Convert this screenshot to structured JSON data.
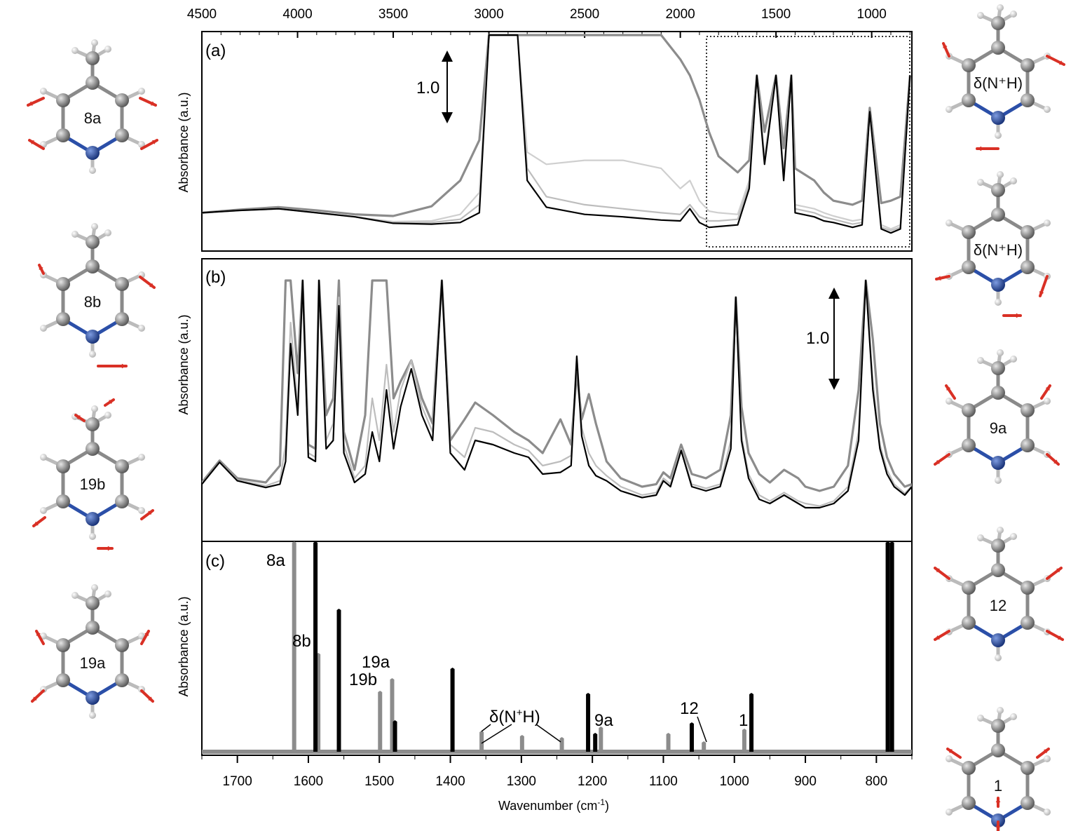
{
  "chart_data": [
    {
      "panel": "(a)",
      "type": "line",
      "ylabel": "Absorbance (a.u.)",
      "x_ticks": [
        4500,
        4000,
        3500,
        3000,
        2500,
        2000,
        1500,
        1000
      ],
      "xlim": [
        4500,
        790
      ],
      "scale_bar": "1.0",
      "series": [
        {
          "color": "#000000",
          "x": [
            4500,
            4300,
            4100,
            3900,
            3700,
            3500,
            3300,
            3150,
            3050,
            3000,
            2900,
            2850,
            2800,
            2700,
            2500,
            2300,
            2100,
            2000,
            1950,
            1900,
            1850,
            1800,
            1700,
            1640,
            1600,
            1560,
            1500,
            1460,
            1420,
            1400,
            1300,
            1250,
            1200,
            1100,
            1050,
            1010,
            950,
            900,
            850,
            800
          ],
          "y": [
            0.3,
            0.33,
            0.35,
            0.3,
            0.25,
            0.17,
            0.16,
            0.18,
            0.3,
            2.5,
            2.5,
            2.5,
            0.7,
            0.37,
            0.28,
            0.25,
            0.21,
            0.2,
            0.35,
            0.18,
            0.12,
            0.13,
            0.15,
            0.6,
            2.0,
            0.9,
            2.0,
            0.7,
            2.0,
            0.3,
            0.25,
            0.2,
            0.18,
            0.12,
            0.15,
            1.55,
            0.1,
            0.05,
            0.1,
            2.0
          ]
        },
        {
          "color": "#bdbdbd",
          "x": [
            4500,
            4300,
            4100,
            3900,
            3700,
            3500,
            3300,
            3150,
            3050,
            3000,
            2900,
            2850,
            2800,
            2700,
            2500,
            2300,
            2100,
            2000,
            1950,
            1900,
            1850,
            1800,
            1700,
            1640,
            1600,
            1560,
            1500,
            1460,
            1420,
            1400,
            1300,
            1250,
            1200,
            1100,
            1050,
            1010,
            950,
            900,
            850,
            800
          ],
          "y": [
            0.3,
            0.33,
            0.35,
            0.3,
            0.25,
            0.18,
            0.18,
            0.22,
            0.4,
            2.5,
            2.5,
            2.5,
            0.85,
            0.5,
            0.4,
            0.35,
            0.3,
            0.28,
            0.4,
            0.25,
            0.2,
            0.2,
            0.22,
            0.65,
            2.0,
            0.95,
            2.0,
            0.75,
            2.0,
            0.35,
            0.3,
            0.25,
            0.22,
            0.16,
            0.18,
            1.55,
            0.12,
            0.08,
            0.12,
            2.0
          ]
        },
        {
          "color": "#cfcfcf",
          "x": [
            4500,
            4300,
            4100,
            3900,
            3700,
            3500,
            3300,
            3150,
            3050,
            3000,
            2900,
            2850,
            2800,
            2700,
            2500,
            2300,
            2100,
            2000,
            1950,
            1900,
            1850,
            1800,
            1700,
            1640,
            1600,
            1560,
            1500,
            1460,
            1420,
            1400,
            1300,
            1250,
            1200,
            1100,
            1050,
            1010,
            950,
            900,
            850,
            800
          ],
          "y": [
            0.3,
            0.33,
            0.35,
            0.3,
            0.25,
            0.19,
            0.2,
            0.28,
            0.55,
            2.5,
            2.5,
            2.5,
            1.05,
            0.9,
            0.95,
            0.95,
            0.85,
            0.6,
            0.7,
            0.45,
            0.32,
            0.3,
            0.28,
            0.7,
            2.0,
            1.0,
            2.0,
            0.8,
            2.0,
            0.4,
            0.35,
            0.3,
            0.26,
            0.2,
            0.22,
            1.55,
            0.15,
            0.1,
            0.15,
            2.0
          ]
        },
        {
          "color": "#8c8c8c",
          "x": [
            4500,
            4300,
            4100,
            3900,
            3700,
            3500,
            3300,
            3150,
            3050,
            3000,
            2900,
            2850,
            2800,
            2700,
            2500,
            2300,
            2100,
            2000,
            1950,
            1900,
            1850,
            1800,
            1700,
            1640,
            1600,
            1560,
            1500,
            1460,
            1420,
            1400,
            1300,
            1250,
            1200,
            1100,
            1050,
            1010,
            950,
            900,
            850,
            800
          ],
          "y": [
            0.3,
            0.34,
            0.37,
            0.33,
            0.28,
            0.26,
            0.38,
            0.7,
            1.2,
            2.5,
            2.5,
            2.5,
            2.5,
            2.5,
            2.5,
            2.5,
            2.5,
            2.2,
            2.0,
            1.7,
            1.3,
            1.0,
            0.8,
            0.95,
            2.0,
            1.3,
            2.0,
            1.1,
            2.0,
            0.85,
            0.7,
            0.55,
            0.45,
            0.4,
            0.45,
            1.6,
            0.42,
            0.45,
            0.5,
            2.0
          ]
        }
      ]
    },
    {
      "panel": "(b)",
      "type": "line",
      "ylabel": "Absorbance (a.u.)",
      "xlim": [
        1750,
        750
      ],
      "scale_bar": "1.0",
      "series": [
        {
          "color": "#000000",
          "x": [
            1750,
            1725,
            1700,
            1660,
            1640,
            1632,
            1625,
            1615,
            1608,
            1600,
            1590,
            1585,
            1575,
            1565,
            1557,
            1550,
            1535,
            1520,
            1510,
            1500,
            1490,
            1480,
            1470,
            1455,
            1440,
            1425,
            1412,
            1400,
            1380,
            1365,
            1340,
            1310,
            1290,
            1270,
            1245,
            1230,
            1222,
            1215,
            1205,
            1195,
            1180,
            1160,
            1130,
            1110,
            1100,
            1090,
            1075,
            1060,
            1040,
            1020,
            1005,
            998,
            990,
            980,
            965,
            950,
            930,
            910,
            900,
            880,
            860,
            840,
            825,
            815,
            805,
            795,
            785,
            775,
            760,
            750
          ],
          "y": [
            0.08,
            0.34,
            0.12,
            0.04,
            0.08,
            0.35,
            1.75,
            0.9,
            2.5,
            0.4,
            0.35,
            2.5,
            0.5,
            0.6,
            2.2,
            0.45,
            0.1,
            0.2,
            0.7,
            0.35,
            1.2,
            0.5,
            1.0,
            1.45,
            0.9,
            0.6,
            2.5,
            0.45,
            0.25,
            0.6,
            0.55,
            0.45,
            0.4,
            0.2,
            0.22,
            0.3,
            1.6,
            0.65,
            0.3,
            0.18,
            0.12,
            0.0,
            -0.08,
            -0.05,
            0.12,
            0.05,
            0.48,
            0.05,
            0.0,
            0.05,
            0.5,
            2.3,
            0.6,
            0.15,
            -0.1,
            -0.15,
            -0.05,
            -0.15,
            -0.2,
            -0.2,
            -0.15,
            0.0,
            0.6,
            2.5,
            1.2,
            0.5,
            0.2,
            0.05,
            -0.05,
            0.05
          ]
        },
        {
          "color": "#bdbdbd",
          "x": [
            1750,
            1725,
            1700,
            1660,
            1640,
            1632,
            1625,
            1615,
            1608,
            1600,
            1590,
            1585,
            1575,
            1565,
            1557,
            1550,
            1535,
            1520,
            1510,
            1500,
            1490,
            1480,
            1470,
            1455,
            1440,
            1425,
            1412,
            1400,
            1380,
            1365,
            1340,
            1310,
            1290,
            1270,
            1245,
            1230,
            1222,
            1215,
            1205,
            1195,
            1180,
            1160,
            1130,
            1110,
            1100,
            1090,
            1075,
            1060,
            1040,
            1020,
            1005,
            998,
            990,
            980,
            965,
            950,
            930,
            910,
            900,
            880,
            860,
            840,
            825,
            815,
            805,
            795,
            785,
            775,
            760,
            750
          ],
          "y": [
            0.09,
            0.34,
            0.13,
            0.06,
            0.12,
            0.55,
            2.0,
            1.0,
            2.5,
            0.45,
            0.4,
            2.5,
            0.6,
            0.8,
            2.3,
            0.55,
            0.15,
            0.3,
            1.1,
            0.6,
            1.5,
            0.7,
            1.2,
            1.55,
            1.0,
            0.7,
            2.5,
            0.55,
            0.4,
            0.75,
            0.7,
            0.55,
            0.48,
            0.3,
            0.35,
            0.42,
            1.6,
            0.75,
            0.45,
            0.3,
            0.18,
            0.05,
            -0.05,
            -0.02,
            0.15,
            0.08,
            0.5,
            0.08,
            0.03,
            0.08,
            0.6,
            2.3,
            0.65,
            0.2,
            -0.05,
            -0.12,
            -0.02,
            -0.12,
            -0.15,
            -0.18,
            -0.12,
            0.05,
            0.7,
            2.5,
            1.3,
            0.55,
            0.25,
            0.08,
            -0.03,
            0.06
          ]
        },
        {
          "color": "#8c8c8c",
          "x": [
            1750,
            1725,
            1700,
            1660,
            1640,
            1632,
            1625,
            1615,
            1608,
            1600,
            1590,
            1585,
            1575,
            1565,
            1557,
            1550,
            1535,
            1520,
            1510,
            1500,
            1490,
            1480,
            1470,
            1455,
            1440,
            1425,
            1412,
            1400,
            1380,
            1365,
            1340,
            1310,
            1290,
            1270,
            1245,
            1230,
            1222,
            1215,
            1205,
            1195,
            1180,
            1160,
            1130,
            1110,
            1100,
            1090,
            1075,
            1060,
            1040,
            1020,
            1005,
            998,
            990,
            980,
            965,
            950,
            930,
            910,
            900,
            880,
            860,
            840,
            825,
            815,
            805,
            795,
            785,
            775,
            760,
            750
          ],
          "y": [
            0.1,
            0.36,
            0.15,
            0.1,
            0.3,
            2.5,
            2.5,
            1.4,
            2.5,
            0.55,
            0.5,
            2.5,
            0.9,
            1.1,
            2.5,
            0.7,
            0.25,
            0.9,
            2.5,
            2.5,
            2.5,
            1.1,
            1.3,
            1.55,
            1.1,
            0.8,
            2.5,
            0.6,
            0.85,
            1.05,
            0.9,
            0.7,
            0.6,
            0.45,
            0.85,
            0.55,
            1.4,
            0.85,
            1.15,
            0.8,
            0.35,
            0.15,
            0.05,
            0.08,
            0.22,
            0.15,
            0.55,
            0.2,
            0.15,
            0.25,
            0.9,
            2.3,
            1.0,
            0.45,
            0.2,
            0.1,
            0.25,
            0.15,
            0.05,
            0.0,
            0.05,
            0.3,
            1.2,
            2.5,
            1.8,
            0.8,
            0.4,
            0.2,
            0.05,
            0.08
          ]
        }
      ]
    },
    {
      "panel": "(c)",
      "type": "bar",
      "xlabel": "Wavenumber (cm-1)",
      "ylabel": "Absorbance (a.u.)",
      "x_ticks": [
        1700,
        1600,
        1500,
        1400,
        1300,
        1200,
        1100,
        1000,
        900,
        800
      ],
      "xlim": [
        1750,
        750
      ],
      "black_sticks": [
        {
          "x": 1590,
          "y": 1.0
        },
        {
          "x": 1557,
          "y": 0.68
        },
        {
          "x": 1478,
          "y": 0.15
        },
        {
          "x": 1397,
          "y": 0.4
        },
        {
          "x": 1206,
          "y": 0.28
        },
        {
          "x": 1196,
          "y": 0.09
        },
        {
          "x": 1060,
          "y": 0.14
        },
        {
          "x": 976,
          "y": 0.28
        },
        {
          "x": 784,
          "y": 1.0
        },
        {
          "x": 778,
          "y": 1.0
        }
      ],
      "gray_sticks": [
        {
          "x": 1620,
          "y": 1.0
        },
        {
          "x": 1586,
          "y": 0.47
        },
        {
          "x": 1499,
          "y": 0.29
        },
        {
          "x": 1482,
          "y": 0.35
        },
        {
          "x": 1356,
          "y": 0.1
        },
        {
          "x": 1299,
          "y": 0.08
        },
        {
          "x": 1243,
          "y": 0.07
        },
        {
          "x": 1188,
          "y": 0.12
        },
        {
          "x": 1093,
          "y": 0.09
        },
        {
          "x": 1043,
          "y": 0.05
        },
        {
          "x": 986,
          "y": 0.11
        }
      ],
      "annotations": [
        {
          "text": "8a"
        },
        {
          "text": "8b"
        },
        {
          "text": "19a"
        },
        {
          "text": "19b"
        },
        {
          "text": "δ(N⁺H)"
        },
        {
          "text": "9a"
        },
        {
          "text": "12"
        },
        {
          "text": "1"
        }
      ]
    }
  ],
  "molecules": {
    "left": [
      "8a",
      "8b",
      "19b",
      "19a"
    ],
    "right": [
      "δ(N⁺H)",
      "δ(N⁺H)",
      "9a",
      "12",
      "1"
    ]
  },
  "labels": {
    "panel_a": "(a)",
    "panel_b": "(b)",
    "panel_c": "(c)",
    "ylabel": "Absorbance (a.u.)",
    "xlabel": "Wavenumber (cm-1)",
    "xlabel_main": "Wavenumber (cm",
    "xlabel_sup": "-1",
    "xlabel_end": ")",
    "scale_a": "1.0",
    "scale_b": "1.0",
    "ann_8a": "8a",
    "ann_8b": "8b",
    "ann_19a": "19a",
    "ann_19b": "19b",
    "ann_dnh_main": "δ(N",
    "ann_dnh_sup": "+",
    "ann_dnh_end": "H)",
    "ann_9a": "9a",
    "ann_12": "12",
    "ann_1": "1"
  },
  "colors": {
    "black": "#000000",
    "dark_gray": "#8c8c8c",
    "light_gray": "#bdbdbd",
    "carbon": "#8a8a8a",
    "nitrogen": "#2b4fa8",
    "hydrogen": "#e8e8e8",
    "arrow": "#d93025"
  }
}
